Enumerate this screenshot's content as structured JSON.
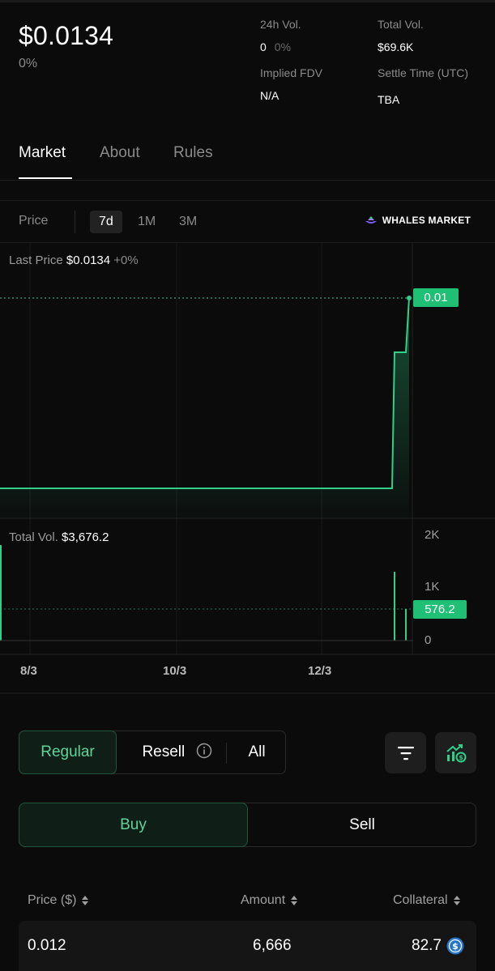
{
  "header": {
    "price": "$0.0134",
    "change": "0%",
    "vol24h_label": "24h Vol.",
    "vol24h_value": "0",
    "vol24h_change": "0%",
    "total_vol_label": "Total Vol.",
    "total_vol_value": "$69.6K",
    "fdv_label": "Implied FDV",
    "fdv_value": "N/A",
    "settle_label": "Settle Time (UTC)",
    "settle_value": "TBA"
  },
  "tabs": [
    {
      "label": "Market",
      "active": true
    },
    {
      "label": "About",
      "active": false
    },
    {
      "label": "Rules",
      "active": false
    }
  ],
  "chart": {
    "range_label": "Price",
    "ranges": [
      {
        "label": "7d",
        "active": true
      },
      {
        "label": "1M",
        "active": false
      },
      {
        "label": "3M",
        "active": false
      }
    ],
    "brand": "WHALES MARKET",
    "last_price_label": "Last Price",
    "last_price_value": "$0.0134",
    "last_price_change": "+0%",
    "price_tag": "0.01",
    "total_vol_label": "Total Vol.",
    "total_vol_value": "$3,676.2",
    "vol_tag": "576.2",
    "vol_axis": [
      "2K",
      "1K",
      "0"
    ],
    "x_axis": [
      "8/3",
      "10/3",
      "12/3"
    ],
    "line_color": "#2fd08a"
  },
  "filters": {
    "types": [
      {
        "label": "Regular",
        "active": true
      },
      {
        "label": "Resell",
        "active": false,
        "icon": "info-icon"
      },
      {
        "label": "All",
        "active": false
      }
    ],
    "icons": [
      "filter-icon",
      "chart-growth-icon"
    ]
  },
  "sides": [
    {
      "label": "Buy",
      "active": true
    },
    {
      "label": "Sell",
      "active": false
    }
  ],
  "table": {
    "headers": [
      "Price ($)",
      "Amount",
      "Collateral"
    ],
    "rows": [
      {
        "price": "0.012",
        "amount": "6,666",
        "collateral": "82.7",
        "collateral_icon": "usdc-icon"
      }
    ]
  }
}
